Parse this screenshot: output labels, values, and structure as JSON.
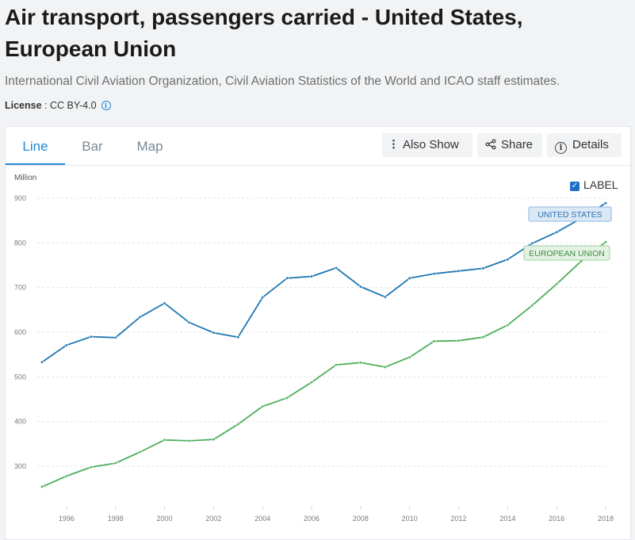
{
  "header": {
    "title": "Air transport, passengers carried - United States, European Union",
    "subtitle": "International Civil Aviation Organization, Civil Aviation Statistics of the World and ICAO staff estimates.",
    "license_label": "License",
    "license_value": " : CC BY-4.0",
    "info_icon": "i"
  },
  "tabs": [
    {
      "label": "Line",
      "active": true
    },
    {
      "label": "Bar",
      "active": false
    },
    {
      "label": "Map",
      "active": false
    }
  ],
  "toolbar": {
    "also_show": "Also Show",
    "share": "Share",
    "details": "Details"
  },
  "label_toggle": {
    "label": "LABEL",
    "checked": true
  },
  "colors": {
    "us": "#1f77b4",
    "eu": "#4daf5a",
    "accent": "#1f8ad2"
  },
  "chart_data": {
    "type": "line",
    "ylabel": "Million",
    "ylim": [
      250,
      920
    ],
    "yticks": [
      "300",
      "400",
      "500",
      "600",
      "700",
      "800",
      "900"
    ],
    "x": [
      1995,
      1996,
      1997,
      1998,
      1999,
      2000,
      2001,
      2002,
      2003,
      2004,
      2005,
      2006,
      2007,
      2008,
      2009,
      2010,
      2011,
      2012,
      2013,
      2014,
      2015,
      2016,
      2017,
      2018
    ],
    "xticks": [
      "1996",
      "1998",
      "2000",
      "2002",
      "2004",
      "2006",
      "2008",
      "2010",
      "2012",
      "2014",
      "2016",
      "2018"
    ],
    "series": [
      {
        "name": "UNITED STATES",
        "values": [
          533,
          571,
          590,
          588,
          634,
          665,
          622,
          599,
          589,
          678,
          721,
          725,
          744,
          702,
          679,
          721,
          731,
          737,
          743,
          763,
          799,
          824,
          855,
          889
        ]
      },
      {
        "name": "EUROPEAN UNION",
        "values": [
          254,
          278,
          298,
          307,
          332,
          359,
          357,
          360,
          394,
          434,
          453,
          488,
          527,
          532,
          522,
          544,
          580,
          581,
          589,
          616,
          660,
          708,
          759,
          802
        ]
      }
    ]
  }
}
